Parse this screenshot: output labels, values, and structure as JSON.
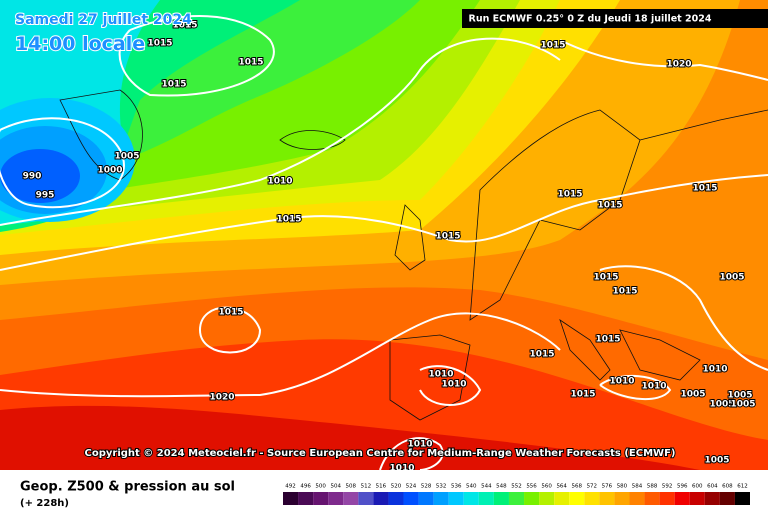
{
  "header": {
    "date": "Samedi 27 juillet 2024",
    "time": "14:00 locale",
    "run": "Run ECMWF 0.25° 0 Z du Jeudi 18 juillet 2024"
  },
  "map": {
    "isobar_labels": [
      1015,
      1015,
      1015,
      1015,
      1015,
      1020,
      1005,
      1000,
      990,
      995,
      1010,
      1015,
      1015,
      1015,
      1015,
      1015,
      1015,
      1015,
      1005,
      1015,
      1015,
      1015,
      1010,
      1010,
      1015,
      1010,
      1010,
      1010,
      1005,
      1005,
      1005,
      1005,
      1020,
      1010,
      1005,
      1010
    ]
  },
  "copyright": "Copyright © 2024 Meteociel.fr - Source European Centre for Medium-Range Weather Forecasts (ECMWF)",
  "footer": {
    "title": "Geop. Z500 & pression au sol",
    "lead": "(+ 228h)",
    "legend": {
      "values": [
        492,
        496,
        500,
        504,
        508,
        512,
        516,
        520,
        524,
        528,
        532,
        536,
        540,
        544,
        548,
        552,
        556,
        560,
        564,
        568,
        572,
        576,
        580,
        584,
        588,
        592,
        596,
        600,
        604,
        608,
        612
      ],
      "colors": [
        "#2b0030",
        "#4a0a55",
        "#661470",
        "#7e2a8c",
        "#9446a6",
        "#5050c8",
        "#1a1ab4",
        "#0a32dc",
        "#0050ff",
        "#0078ff",
        "#00a0ff",
        "#00c8ff",
        "#00e6e6",
        "#00f0b4",
        "#00f078",
        "#3cf03c",
        "#78f000",
        "#b4f000",
        "#e6f000",
        "#ffff00",
        "#ffe100",
        "#ffc300",
        "#ffa500",
        "#ff8200",
        "#ff5a00",
        "#ff3200",
        "#f00000",
        "#c80000",
        "#960000",
        "#640000",
        "#000000"
      ]
    }
  }
}
